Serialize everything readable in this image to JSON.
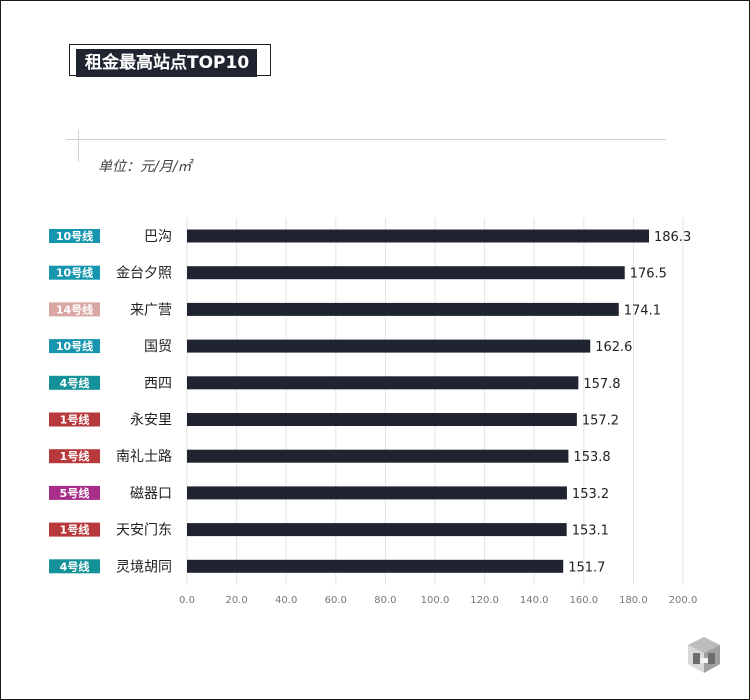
{
  "title": "租金最高站点TOP10",
  "unit_label": "单位：元/月/㎡",
  "colors": {
    "bar": "#1f2430",
    "line10": "#1596ae",
    "line14": "#d9a6a3",
    "line4": "#13929a",
    "line1": "#b8393c",
    "line5": "#a72f8a",
    "grid": "#e3e3e3"
  },
  "chart_data": {
    "type": "bar",
    "orientation": "horizontal",
    "categories": [
      "巴沟",
      "金台夕照",
      "来广营",
      "国贸",
      "西四",
      "永安里",
      "南礼士路",
      "磁器口",
      "天安门东",
      "灵境胡同"
    ],
    "lines": [
      "10号线",
      "10号线",
      "14号线",
      "10号线",
      "4号线",
      "1号线",
      "1号线",
      "5号线",
      "1号线",
      "4号线"
    ],
    "line_colors": [
      "#1596ae",
      "#1596ae",
      "#d9a6a3",
      "#1596ae",
      "#13929a",
      "#b8393c",
      "#b8393c",
      "#a72f8a",
      "#b8393c",
      "#13929a"
    ],
    "values": [
      186.3,
      176.5,
      174.1,
      162.6,
      157.8,
      157.2,
      153.8,
      153.2,
      153.1,
      151.7
    ],
    "value_labels": [
      "186.3",
      "176.5",
      "174.1",
      "162.6",
      "157.8",
      "157.2",
      "153.8",
      "153.2",
      "153.1",
      "151.7"
    ],
    "xlim": [
      0,
      200
    ],
    "xticks": [
      "0.0",
      "20.0",
      "40.0",
      "60.0",
      "80.0",
      "100.0",
      "120.0",
      "140.0",
      "160.0",
      "180.0",
      "200.0"
    ],
    "grid": true,
    "legend": "none"
  }
}
